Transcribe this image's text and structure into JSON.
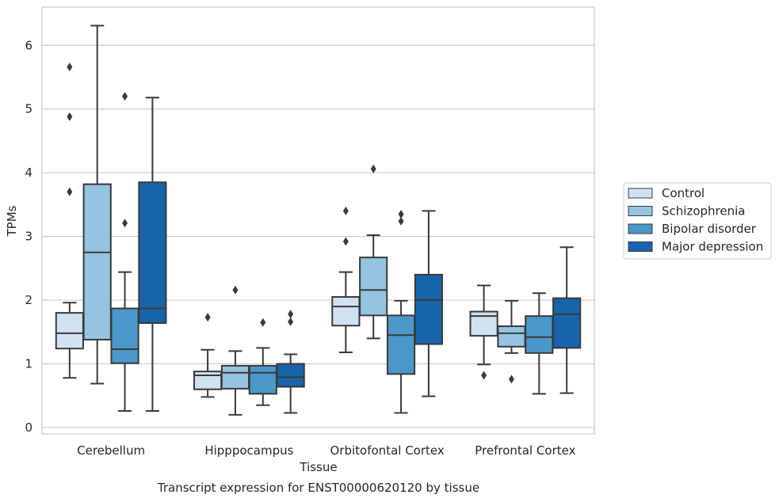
{
  "caption": "Transcript expression for ENST00000620120 by tissue",
  "chart_data": {
    "type": "box",
    "xlabel": "Tissue",
    "ylabel": "TPMs",
    "ylim": [
      -0.1,
      6.6
    ],
    "yticks": [
      0,
      1,
      2,
      3,
      4,
      5,
      6
    ],
    "grid": "horizontal",
    "legend_position": "right",
    "categories": [
      "Cerebellum",
      "Hipppocampus",
      "Orbitofontal Cortex",
      "Prefrontal Cortex"
    ],
    "series": [
      {
        "name": "Control",
        "color": "#d0e1f2",
        "boxes": [
          {
            "whislo": 0.78,
            "q1": 1.24,
            "med": 1.48,
            "q3": 1.8,
            "whishi": 1.96,
            "fliers": [
              3.7,
              4.88,
              5.66
            ]
          },
          {
            "whislo": 0.48,
            "q1": 0.6,
            "med": 0.82,
            "q3": 0.88,
            "whishi": 1.22,
            "fliers": [
              1.73
            ]
          },
          {
            "whislo": 1.18,
            "q1": 1.6,
            "med": 1.9,
            "q3": 2.05,
            "whishi": 2.44,
            "fliers": [
              2.92,
              3.4
            ]
          },
          {
            "whislo": 0.99,
            "q1": 1.44,
            "med": 1.75,
            "q3": 1.82,
            "whishi": 2.23,
            "fliers": [
              0.82
            ]
          }
        ]
      },
      {
        "name": "Schizophrenia",
        "color": "#94c4df",
        "boxes": [
          {
            "whislo": 0.69,
            "q1": 1.38,
            "med": 2.75,
            "q3": 3.82,
            "whishi": 6.31,
            "fliers": []
          },
          {
            "whislo": 0.2,
            "q1": 0.61,
            "med": 0.86,
            "q3": 0.97,
            "whishi": 1.2,
            "fliers": [
              2.16
            ]
          },
          {
            "whislo": 1.4,
            "q1": 1.76,
            "med": 2.16,
            "q3": 2.67,
            "whishi": 3.02,
            "fliers": [
              4.06
            ]
          },
          {
            "whislo": 1.17,
            "q1": 1.27,
            "med": 1.48,
            "q3": 1.59,
            "whishi": 1.99,
            "fliers": [
              0.76
            ]
          }
        ]
      },
      {
        "name": "Bipolar disorder",
        "color": "#4a98c9",
        "boxes": [
          {
            "whislo": 0.26,
            "q1": 1.01,
            "med": 1.23,
            "q3": 1.87,
            "whishi": 2.44,
            "fliers": [
              3.21,
              5.2
            ]
          },
          {
            "whislo": 0.35,
            "q1": 0.53,
            "med": 0.86,
            "q3": 0.97,
            "whishi": 1.25,
            "fliers": [
              1.65
            ]
          },
          {
            "whislo": 0.23,
            "q1": 0.84,
            "med": 1.45,
            "q3": 1.76,
            "whishi": 1.99,
            "fliers": [
              3.24,
              3.35
            ]
          },
          {
            "whislo": 0.53,
            "q1": 1.17,
            "med": 1.42,
            "q3": 1.75,
            "whishi": 2.11,
            "fliers": []
          }
        ]
      },
      {
        "name": "Major depression",
        "color": "#1764ab",
        "boxes": [
          {
            "whislo": 0.26,
            "q1": 1.64,
            "med": 1.87,
            "q3": 3.85,
            "whishi": 5.18,
            "fliers": []
          },
          {
            "whislo": 0.23,
            "q1": 0.64,
            "med": 0.79,
            "q3": 1.0,
            "whishi": 1.15,
            "fliers": [
              1.66,
              1.78
            ]
          },
          {
            "whislo": 0.49,
            "q1": 1.31,
            "med": 2.0,
            "q3": 2.4,
            "whishi": 3.4,
            "fliers": []
          },
          {
            "whislo": 0.54,
            "q1": 1.25,
            "med": 1.78,
            "q3": 2.03,
            "whishi": 2.83,
            "fliers": []
          }
        ]
      }
    ]
  }
}
